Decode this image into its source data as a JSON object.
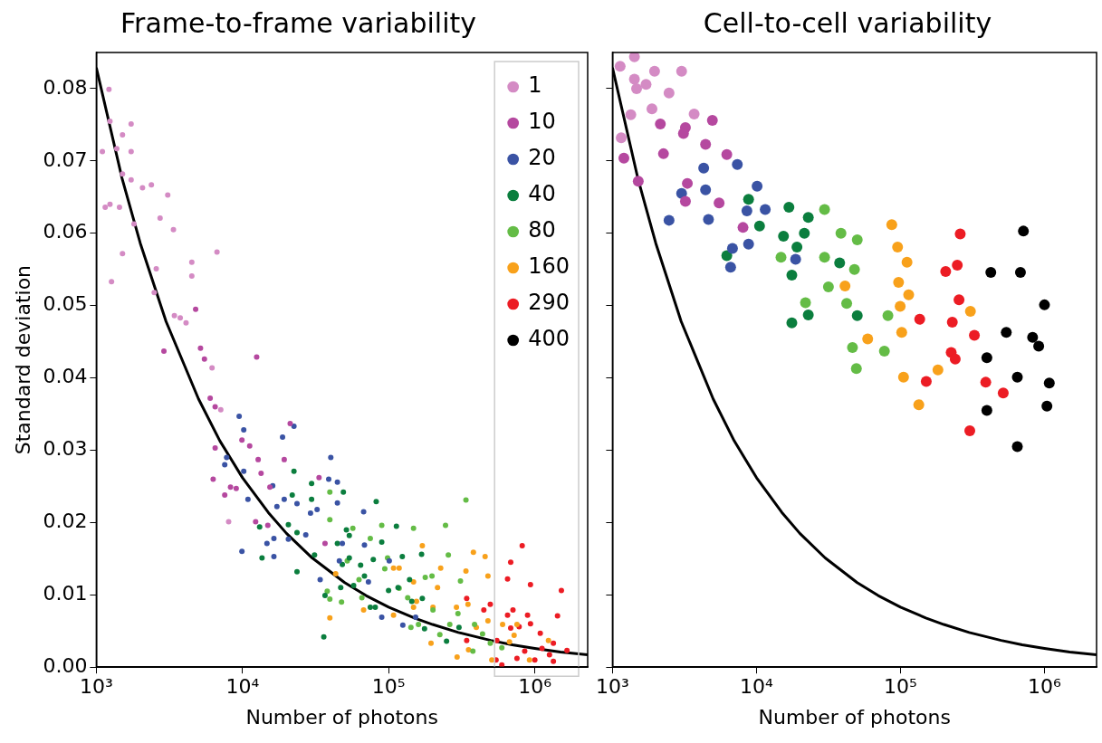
{
  "chart_data": [
    {
      "type": "scatter",
      "title": "Frame-to-frame variability",
      "xlabel": "Number of photons",
      "ylabel": "Standard deviation",
      "log": "x",
      "grid": false,
      "legend": "top right",
      "marker": "circle",
      "xlim": [
        1000,
        2300000
      ],
      "xticks": [
        {
          "value": 1000,
          "label": "10³"
        },
        {
          "value": 10000,
          "label": "10⁴"
        },
        {
          "value": 100000,
          "label": "10⁵"
        },
        {
          "value": 1000000,
          "label": "10⁶"
        }
      ],
      "ylim": [
        0,
        0.085
      ],
      "yticks": [
        {
          "value": 0,
          "label": "0.00"
        },
        {
          "value": 0.01,
          "label": "0.01"
        },
        {
          "value": 0.02,
          "label": "0.02"
        },
        {
          "value": 0.03,
          "label": "0.03"
        },
        {
          "value": 0.04,
          "label": "0.04"
        },
        {
          "value": 0.05,
          "label": "0.05"
        },
        {
          "value": 0.06,
          "label": "0.06"
        },
        {
          "value": 0.07,
          "label": "0.07"
        },
        {
          "value": 0.08,
          "label": "0.08"
        }
      ],
      "series": [
        {
          "name": "1",
          "color": "#d48bc4",
          "x": [
            1220,
            1240,
            1730,
            1510,
            1100,
            1380,
            1730,
            1510,
            1730,
            2070,
            2380,
            3080,
            1150,
            1240,
            1440,
            2730,
            1810,
            3370,
            1510,
            6690,
            1270,
            2570,
            4500,
            4500,
            2490,
            3420,
            3750,
            4110,
            6190,
            8040,
            7100
          ],
          "values": [
            0.0799,
            0.0755,
            0.0751,
            0.0736,
            0.0713,
            0.0717,
            0.0713,
            0.0682,
            0.0674,
            0.0663,
            0.0667,
            0.0653,
            0.0636,
            0.064,
            0.0636,
            0.0621,
            0.0613,
            0.0605,
            0.0572,
            0.0574,
            0.0533,
            0.0551,
            0.056,
            0.0541,
            0.0518,
            0.0486,
            0.0483,
            0.0476,
            0.0414,
            0.0201,
            0.0356
          ]
        },
        {
          "name": "10",
          "color": "#b5489f",
          "x": [
            4780,
            2900,
            5160,
            5490,
            12500,
            6010,
            6500,
            6500,
            6300,
            7560,
            9910,
            11200,
            12800,
            13400,
            9060,
            8280,
            12300,
            14900,
            15400,
            19300,
            21200,
            33400,
            36700
          ],
          "values": [
            0.0495,
            0.0437,
            0.0441,
            0.0426,
            0.0429,
            0.0372,
            0.036,
            0.0303,
            0.026,
            0.0238,
            0.0314,
            0.0306,
            0.0287,
            0.0268,
            0.0247,
            0.0249,
            0.0201,
            0.0196,
            0.0249,
            0.0287,
            0.0337,
            0.0262,
            0.0171
          ]
        },
        {
          "name": "20",
          "color": "#3a53a4",
          "x": [
            9490,
            10200,
            7790,
            7560,
            10200,
            18800,
            22500,
            10900,
            16100,
            17200,
            19300,
            23600,
            14700,
            9910,
            16400,
            16400,
            20600,
            27100,
            29200,
            32400,
            38900,
            40200,
            44600,
            44600,
            67400,
            68300,
            34000,
            46000,
            48200,
            72700,
            101000,
            89700,
            125000,
            153000
          ],
          "values": [
            0.0347,
            0.0328,
            0.029,
            0.028,
            0.0271,
            0.0318,
            0.0333,
            0.0232,
            0.0251,
            0.0222,
            0.0232,
            0.0226,
            0.0171,
            0.016,
            0.0153,
            0.0178,
            0.0177,
            0.0183,
            0.0213,
            0.0218,
            0.026,
            0.029,
            0.0256,
            0.0227,
            0.0215,
            0.0169,
            0.0121,
            0.0147,
            0.0171,
            0.0118,
            0.0147,
            0.0069,
            0.0058,
            0.0069
          ]
        },
        {
          "name": "40",
          "color": "#0b7e3e",
          "x": [
            13600,
            13100,
            20600,
            23600,
            21900,
            22500,
            29700,
            29700,
            31100,
            23600,
            36000,
            36700,
            44600,
            49000,
            51400,
            53800,
            48200,
            53800,
            47000,
            64300,
            68300,
            57600,
            82200,
            89700,
            78500,
            74900,
            81000,
            99900,
            113000,
            124000,
            116000,
            139000,
            144000,
            168000,
            170000,
            176000,
            249000,
            303000
          ],
          "values": [
            0.0151,
            0.0194,
            0.0197,
            0.0186,
            0.0238,
            0.0271,
            0.0254,
            0.0232,
            0.0155,
            0.0132,
            0.0042,
            0.0099,
            0.0171,
            0.0242,
            0.019,
            0.0182,
            0.0142,
            0.0151,
            0.011,
            0.0141,
            0.0126,
            0.0113,
            0.0229,
            0.0173,
            0.0149,
            0.0083,
            0.0083,
            0.0106,
            0.0195,
            0.0153,
            0.011,
            0.0121,
            0.0091,
            0.0156,
            0.0095,
            0.0053,
            0.0036,
            0.0055
          ]
        },
        {
          "name": "80",
          "color": "#64bc46",
          "x": [
            39600,
            39600,
            56900,
            74900,
            89700,
            94100,
            98300,
            52100,
            38000,
            39600,
            47600,
            62700,
            65600,
            118000,
            135000,
            148000,
            178000,
            198000,
            201000,
            142000,
            160000,
            224000,
            245000,
            256000,
            262000,
            310000,
            298000,
            338000,
            387000,
            377000,
            439000,
            496000,
            595000
          ],
          "values": [
            0.0242,
            0.0204,
            0.0192,
            0.0178,
            0.0196,
            0.0136,
            0.0151,
            0.0147,
            0.0105,
            0.0094,
            0.009,
            0.0121,
            0.0096,
            0.0109,
            0.0096,
            0.0192,
            0.0124,
            0.0126,
            0.0079,
            0.0055,
            0.0059,
            0.0045,
            0.0196,
            0.0155,
            0.0059,
            0.0119,
            0.0074,
            0.0231,
            0.0059,
            0.0022,
            0.0046,
            0.0033,
            0.0027
          ]
        },
        {
          "name": "160",
          "color": "#f8a11b",
          "x": [
            170000,
            108000,
            118000,
            43400,
            39600,
            67400,
            108000,
            148000,
            155000,
            148000,
            201000,
            216000,
            227000,
            195000,
            291000,
            294000,
            338000,
            349000,
            352000,
            380000,
            398000,
            457000,
            478000,
            478000,
            508000,
            602000,
            671000,
            722000,
            755000,
            920000,
            1240000
          ],
          "values": [
            0.0168,
            0.0137,
            0.0137,
            0.0129,
            0.0068,
            0.0079,
            0.0072,
            0.0118,
            0.0091,
            0.0083,
            0.0083,
            0.011,
            0.0137,
            0.0033,
            0.0083,
            0.0014,
            0.0133,
            0.0087,
            0.0024,
            0.0159,
            0.0055,
            0.0153,
            0.0126,
            0.0064,
            0.001,
            0.0059,
            0.0035,
            0.0044,
            0.0059,
            0.001,
            0.0037
          ]
        },
        {
          "name": "290",
          "color": "#ec1c24",
          "x": [
            342000,
            448000,
            496000,
            342000,
            550000,
            684000,
            820000,
            651000,
            709000,
            651000,
            684000,
            781000,
            892000,
            934000,
            934000,
            1090000,
            1430000,
            1520000,
            1340000,
            853000,
            755000,
            595000,
            543000,
            1000000,
            1120000,
            1260000,
            1340000,
            1660000
          ],
          "values": [
            0.0095,
            0.0079,
            0.0087,
            0.0037,
            0.0037,
            0.0145,
            0.0168,
            0.0122,
            0.0079,
            0.0072,
            0.0054,
            0.0056,
            0.0072,
            0.006,
            0.0114,
            0.0047,
            0.0071,
            0.0106,
            0.0033,
            0.0022,
            0.0012,
            0.0003,
            0.001,
            0.001,
            0.0026,
            0.0017,
            0.0008,
            0.0023
          ]
        },
        {
          "name": "400",
          "color": "#000000"
        },
        {
          "type": "line",
          "color": "#000000",
          "marker": "none",
          "line_style": "solid",
          "x": [
            1000,
            1500,
            2000,
            3000,
            5000,
            7000,
            10000,
            15000,
            20000,
            30000,
            50000,
            70000,
            100000,
            150000,
            200000,
            300000,
            500000,
            700000,
            1000000,
            1500000,
            2300000
          ],
          "values": [
            0.0829,
            0.0676,
            0.0586,
            0.0478,
            0.0371,
            0.0313,
            0.0262,
            0.0214,
            0.0185,
            0.0151,
            0.0117,
            0.0099,
            0.0083,
            0.0068,
            0.0059,
            0.0048,
            0.0037,
            0.0031,
            0.0026,
            0.0021,
            0.0017
          ]
        }
      ]
    },
    {
      "type": "scatter",
      "title": "Cell-to-cell variability",
      "xlabel": "Number of photons",
      "log": "x",
      "grid": false,
      "marker": "circle",
      "tick_labels": "x",
      "xlim": [
        1000,
        2300000
      ],
      "xticks": [
        {
          "value": 1000,
          "label": "10³"
        },
        {
          "value": 10000,
          "label": "10⁴"
        },
        {
          "value": 100000,
          "label": "10⁵"
        },
        {
          "value": 1000000,
          "label": "10⁶"
        }
      ],
      "ylim": [
        0,
        0.085
      ],
      "yticks": [
        0,
        0.01,
        0.02,
        0.03,
        0.04,
        0.05,
        0.06,
        0.07,
        0.08
      ],
      "series": [
        {
          "color": "#d48bc4",
          "x": [
            1130,
            1420,
            1420,
            1470,
            1710,
            1960,
            3020,
            2470,
            1880,
            1340,
            3690,
            1150
          ],
          "values": [
            0.0831,
            0.0844,
            0.0813,
            0.08,
            0.0806,
            0.0824,
            0.0824,
            0.0794,
            0.0772,
            0.0764,
            0.0765,
            0.0732
          ]
        },
        {
          "color": "#b5489f",
          "x": [
            1200,
            2150,
            2260,
            1510,
            3210,
            3110,
            4940,
            4430,
            6220,
            3310,
            3210,
            5500,
            8060
          ],
          "values": [
            0.0704,
            0.0751,
            0.071,
            0.0672,
            0.0746,
            0.0738,
            0.0756,
            0.0723,
            0.0709,
            0.0669,
            0.0644,
            0.0642,
            0.0608
          ]
        },
        {
          "color": "#3a53a4",
          "x": [
            7360,
            4300,
            3020,
            4430,
            2470,
            4640,
            10100,
            8580,
            11500,
            6810,
            8810,
            6610,
            18700
          ],
          "values": [
            0.0695,
            0.069,
            0.0655,
            0.066,
            0.0618,
            0.0619,
            0.0665,
            0.0631,
            0.0633,
            0.0579,
            0.0585,
            0.0553,
            0.0564
          ]
        },
        {
          "color": "#0b7e3e",
          "x": [
            8810,
            10500,
            6220,
            16800,
            22900,
            15400,
            21500,
            19100,
            17600,
            22900,
            17600,
            37800,
            50100
          ],
          "values": [
            0.0647,
            0.061,
            0.0569,
            0.0636,
            0.0622,
            0.0596,
            0.06,
            0.0581,
            0.0542,
            0.0487,
            0.0476,
            0.0559,
            0.0486
          ]
        },
        {
          "color": "#64bc46",
          "x": [
            29700,
            14800,
            29700,
            38600,
            50100,
            47900,
            31600,
            21900,
            42300,
            81800,
            46400,
            77300,
            49400
          ],
          "values": [
            0.0633,
            0.0567,
            0.0567,
            0.06,
            0.0591,
            0.055,
            0.0526,
            0.0504,
            0.0503,
            0.0486,
            0.0442,
            0.0437,
            0.0413
          ]
        },
        {
          "color": "#f8a11b",
          "x": [
            87000,
            95500,
            111000,
            97000,
            114000,
            99500,
            41200,
            306000,
            102000,
            59200,
            182000,
            105000,
            134000
          ],
          "values": [
            0.0612,
            0.0581,
            0.056,
            0.0532,
            0.0515,
            0.0499,
            0.0527,
            0.0492,
            0.0463,
            0.0454,
            0.0411,
            0.0401,
            0.0363
          ]
        },
        {
          "color": "#ec1c24",
          "x": [
            260000,
            248000,
            206000,
            255000,
            136000,
            229000,
            326000,
            225000,
            240000,
            151000,
            391000,
            517000,
            303000
          ],
          "values": [
            0.0599,
            0.0556,
            0.0547,
            0.0508,
            0.0481,
            0.0477,
            0.0459,
            0.0435,
            0.0426,
            0.0395,
            0.0394,
            0.0379,
            0.0327
          ]
        },
        {
          "color": "#000000",
          "x": [
            714000,
            424000,
            681000,
            1000000,
            543000,
            827000,
            912000,
            398000,
            648000,
            1080000,
            398000,
            1040000,
            648000
          ],
          "values": [
            0.0603,
            0.0546,
            0.0546,
            0.0501,
            0.0463,
            0.0456,
            0.0444,
            0.0428,
            0.0401,
            0.0393,
            0.0355,
            0.0361,
            0.0305
          ]
        },
        {
          "type": "line",
          "color": "#000000",
          "marker": "none",
          "line_style": "solid",
          "x": [
            1000,
            1500,
            2000,
            3000,
            5000,
            7000,
            10000,
            15000,
            20000,
            30000,
            50000,
            70000,
            100000,
            150000,
            200000,
            300000,
            500000,
            700000,
            1000000,
            1500000,
            2300000
          ],
          "values": [
            0.0829,
            0.0676,
            0.0586,
            0.0478,
            0.0371,
            0.0313,
            0.0262,
            0.0214,
            0.0185,
            0.0151,
            0.0117,
            0.0099,
            0.0083,
            0.0068,
            0.0059,
            0.0048,
            0.0037,
            0.0031,
            0.0026,
            0.0021,
            0.0017
          ]
        }
      ]
    }
  ]
}
